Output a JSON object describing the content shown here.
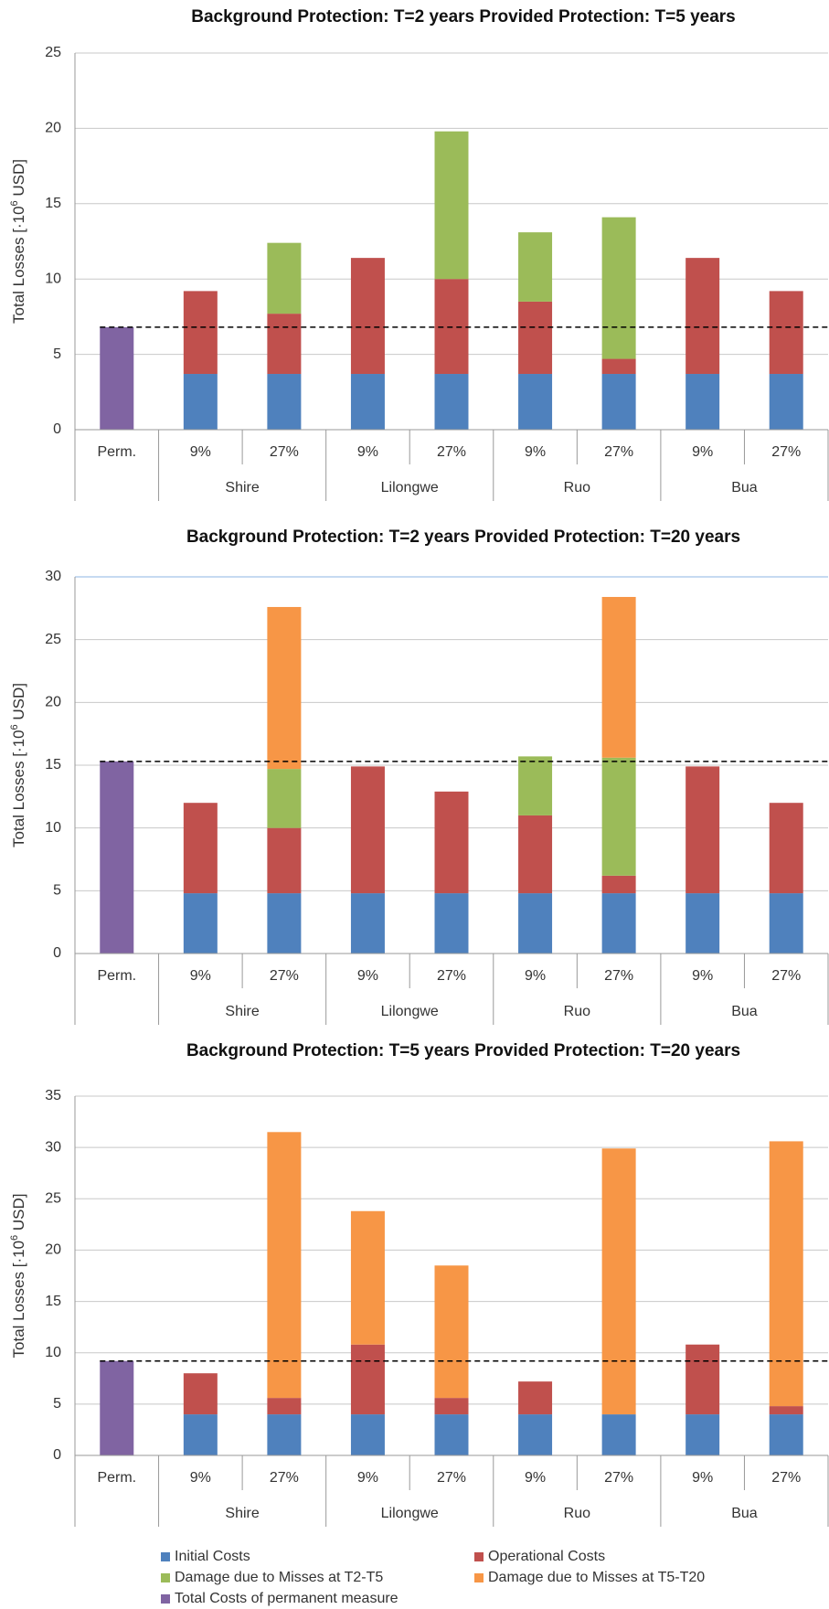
{
  "chart_data": [
    {
      "type": "bar",
      "stacked": true,
      "title": "Background Protection: T=2 years Provided Protection: T=5 years",
      "ylabel": [
        "Total Losses [·10",
        "6",
        " USD]"
      ],
      "categories": [
        "Perm.",
        "9%",
        "27%",
        "9%",
        "27%",
        "9%",
        "27%",
        "9%",
        "27%"
      ],
      "groups": [
        "Shire",
        "Lilongwe",
        "Ruo",
        "Bua"
      ],
      "ylim": [
        0,
        25
      ],
      "yticks": [
        0,
        5,
        10,
        15,
        20,
        25
      ],
      "grid": true,
      "series": [
        {
          "name": "Initial Costs",
          "color": "#4f81bd",
          "values": [
            null,
            3.7,
            3.7,
            3.7,
            3.7,
            3.7,
            3.7,
            3.7,
            3.7
          ]
        },
        {
          "name": "Operational Costs",
          "color": "#c0504d",
          "values": [
            null,
            5.5,
            4.0,
            7.7,
            6.3,
            4.8,
            1.0,
            7.7,
            5.5
          ]
        },
        {
          "name": "Damage due to Misses at T2-T5",
          "color": "#9bbb59",
          "values": [
            null,
            0,
            4.7,
            0,
            9.8,
            4.6,
            9.4,
            0,
            0
          ]
        },
        {
          "name": "Damage due to Misses at T5-T20",
          "color": "#f79646",
          "values": [
            null,
            0,
            0,
            0,
            0,
            0,
            0,
            0,
            0
          ]
        },
        {
          "name": "Total Costs of permanent measure",
          "color": "#8064a2",
          "values": [
            6.8,
            null,
            null,
            null,
            null,
            null,
            null,
            null,
            null
          ]
        }
      ]
    },
    {
      "type": "bar",
      "stacked": true,
      "title": "Background Protection: T=2 years Provided Protection: T=20 years",
      "ylabel": [
        "Total Losses [·10",
        "6",
        " USD]"
      ],
      "categories": [
        "Perm.",
        "9%",
        "27%",
        "9%",
        "27%",
        "9%",
        "27%",
        "9%",
        "27%"
      ],
      "groups": [
        "Shire",
        "Lilongwe",
        "Ruo",
        "Bua"
      ],
      "ylim": [
        0,
        30
      ],
      "yticks": [
        0,
        5,
        10,
        15,
        20,
        25,
        30
      ],
      "grid": true,
      "series": [
        {
          "color": "#4f81bd",
          "values": [
            null,
            4.8,
            4.8,
            4.8,
            4.8,
            4.8,
            4.8,
            4.8,
            4.8
          ]
        },
        {
          "color": "#c0504d",
          "values": [
            null,
            7.2,
            5.2,
            10.1,
            8.1,
            6.2,
            1.4,
            10.1,
            7.2
          ]
        },
        {
          "color": "#9bbb59",
          "values": [
            null,
            0,
            4.7,
            0,
            0,
            4.7,
            9.4,
            0,
            0
          ]
        },
        {
          "color": "#f79646",
          "values": [
            null,
            0,
            12.9,
            0,
            0,
            0,
            12.8,
            0,
            0
          ]
        },
        {
          "color": "#8064a2",
          "values": [
            15.3,
            null,
            null,
            null,
            null,
            null,
            null,
            null,
            null
          ]
        }
      ]
    },
    {
      "type": "bar",
      "stacked": true,
      "title": "Background Protection: T=5 years Provided Protection: T=20 years",
      "ylabel": [
        "Total Losses [·10",
        "6",
        " USD]"
      ],
      "categories": [
        "Perm.",
        "9%",
        "27%",
        "9%",
        "27%",
        "9%",
        "27%",
        "9%",
        "27%"
      ],
      "groups": [
        "Shire",
        "Lilongwe",
        "Ruo",
        "Bua"
      ],
      "ylim": [
        0,
        35
      ],
      "yticks": [
        0,
        5,
        10,
        15,
        20,
        25,
        30,
        35
      ],
      "grid": true,
      "series": [
        {
          "color": "#4f81bd",
          "values": [
            null,
            4.0,
            4.0,
            4.0,
            4.0,
            4.0,
            4.0,
            4.0,
            4.0
          ]
        },
        {
          "color": "#c0504d",
          "values": [
            null,
            4.0,
            1.6,
            6.8,
            1.6,
            3.2,
            0,
            6.8,
            0.8
          ]
        },
        {
          "color": "#9bbb59",
          "values": [
            null,
            0,
            0,
            0,
            0,
            0,
            0,
            0,
            0
          ]
        },
        {
          "color": "#f79646",
          "values": [
            null,
            0,
            25.9,
            13.0,
            12.9,
            0,
            25.9,
            0,
            25.8
          ]
        },
        {
          "color": "#8064a2",
          "values": [
            9.2,
            null,
            null,
            null,
            null,
            null,
            null,
            null,
            null
          ]
        }
      ]
    }
  ]
}
